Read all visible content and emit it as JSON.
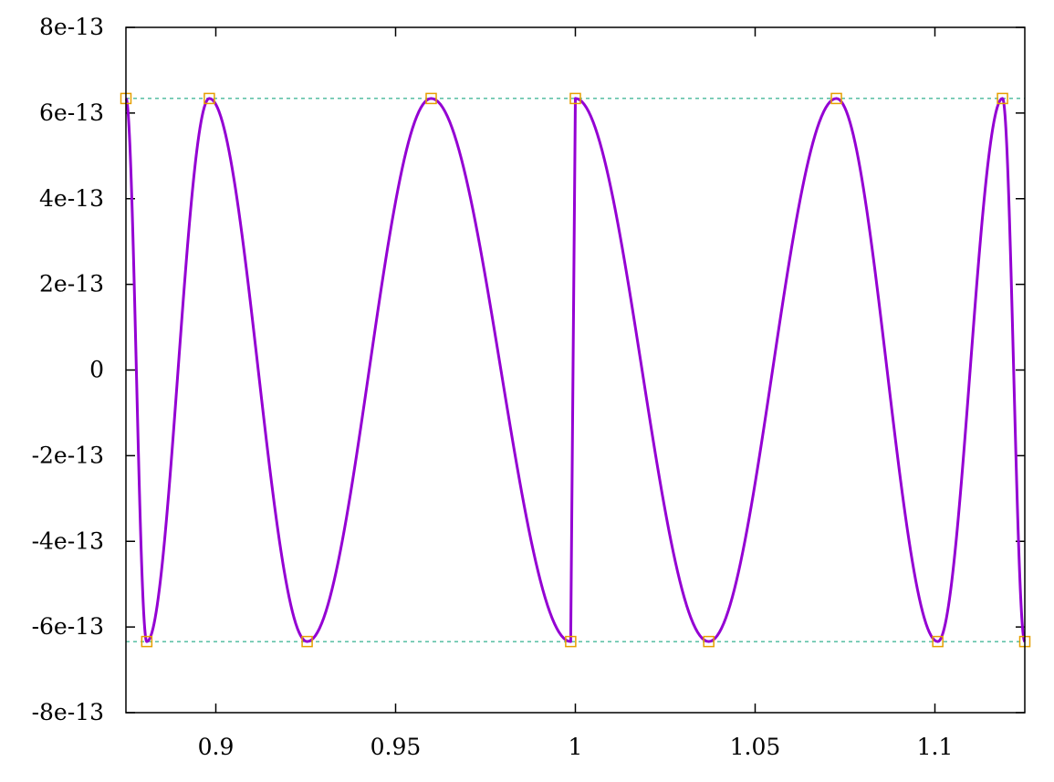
{
  "chart_data": {
    "type": "line",
    "title": "",
    "xlabel": "",
    "ylabel": "",
    "xlim": [
      0.875,
      1.125
    ],
    "ylim": [
      -8e-13,
      8e-13
    ],
    "grid": false,
    "legend": "none",
    "x_ticks": [
      0.9,
      0.95,
      1,
      1.05,
      1.1
    ],
    "x_tick_labels": [
      "0.9",
      "0.95",
      "1",
      "1.05",
      "1.1"
    ],
    "y_ticks": [
      -8e-13,
      -6e-13,
      -4e-13,
      -2e-13,
      0,
      2e-13,
      4e-13,
      6e-13,
      8e-13
    ],
    "y_tick_labels": [
      "-8e-13",
      "-6e-13",
      "-4e-13",
      "-2e-13",
      "0",
      "2e-13",
      "4e-13",
      "6e-13",
      "8e-13"
    ],
    "reference_lines": [
      6.34e-13,
      -6.34e-13
    ],
    "series": [
      {
        "style": "curve",
        "color": "#9400d3",
        "extrema": [
          {
            "x": 0.875,
            "y": 6.34e-13
          },
          {
            "x": 0.8808,
            "y": -6.34e-13
          },
          {
            "x": 0.8982,
            "y": 6.34e-13
          },
          {
            "x": 0.9254,
            "y": -6.34e-13
          },
          {
            "x": 0.9599,
            "y": 6.34e-13
          },
          {
            "x": 0.9987,
            "y": -6.34e-13
          },
          {
            "x": 1.0,
            "y": 6.34e-13
          },
          {
            "x": 1.0371,
            "y": -6.34e-13
          },
          {
            "x": 1.0726,
            "y": 6.34e-13
          },
          {
            "x": 1.1008,
            "y": -6.34e-13
          },
          {
            "x": 1.1188,
            "y": 6.34e-13
          },
          {
            "x": 1.125,
            "y": -6.34e-13
          }
        ]
      },
      {
        "style": "markers",
        "marker": "open-square",
        "color": "#e69f00"
      }
    ],
    "reference_line_color": "#009e73"
  }
}
